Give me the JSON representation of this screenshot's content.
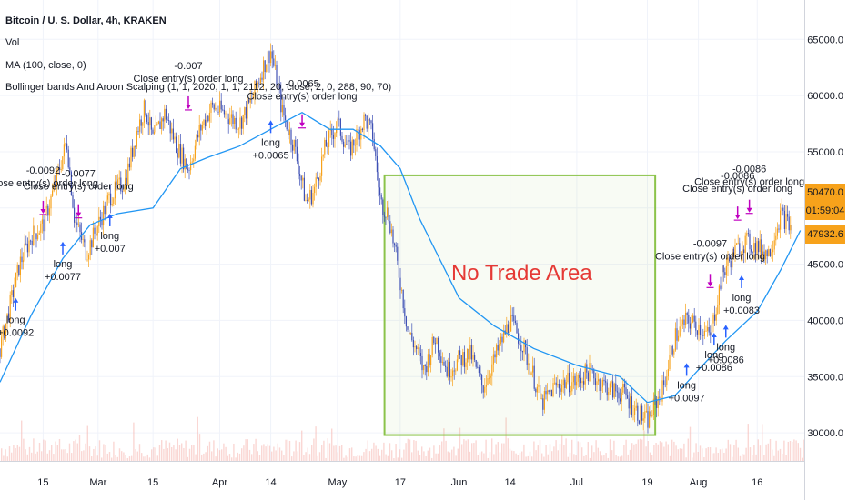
{
  "header": {
    "title": "Bitcoin / U. S. Dollar, 4h, KRAKEN",
    "vol": "Vol",
    "ma": "MA (100, close, 0)",
    "strategy": "Bollinger bands And Aroon Scalping (1, 1, 2020, 1, 1, 2112, 20, close, 2, 0, 288, 90, 70)"
  },
  "price_labels": {
    "last_price": "50470.0",
    "countdown": "01:59:04",
    "ma_value": "47932.6"
  },
  "annotation": {
    "text": "No Trade Area",
    "box_color": "#8bc34a",
    "text_color": "#e53935"
  },
  "colors": {
    "candle": "#f7a21b",
    "candle_alt": "#3f51b5",
    "ma_line": "#2196f3",
    "long_arrow": "#2962ff",
    "close_arrow": "#c000c0",
    "volume": "#f5b7b1",
    "last_price_bg": "#f7a21b",
    "ma_label_bg": "#f7a21b"
  },
  "chart_data": {
    "type": "line",
    "ylim": [
      27500,
      68500
    ],
    "yticks": [
      30000,
      35000,
      40000,
      45000,
      50000,
      55000,
      60000,
      65000
    ],
    "ytick_labels": [
      "30000.0",
      "35000.0",
      "40000.0",
      "45000.0",
      "50000.0",
      "55000.0",
      "60000.0",
      "65000.0"
    ],
    "xtick_labels": [
      "15",
      "Mar",
      "15",
      "Apr",
      "14",
      "May",
      "17",
      "Jun",
      "14",
      "Jul",
      "19",
      "Aug",
      "16"
    ],
    "xtick_dates": [
      "2021-02-15",
      "2021-03-01",
      "2021-03-15",
      "2021-04-01",
      "2021-04-14",
      "2021-05-01",
      "2021-05-17",
      "2021-06-01",
      "2021-06-14",
      "2021-07-01",
      "2021-07-19",
      "2021-08-01",
      "2021-08-16"
    ],
    "price": {
      "name": "Bitcoin / U. S. Dollar",
      "x": [
        "2021-02-04",
        "2021-02-06",
        "2021-02-09",
        "2021-02-12",
        "2021-02-15",
        "2021-02-18",
        "2021-02-21",
        "2021-02-23",
        "2021-02-26",
        "2021-03-01",
        "2021-03-04",
        "2021-03-08",
        "2021-03-11",
        "2021-03-13",
        "2021-03-15",
        "2021-03-18",
        "2021-03-21",
        "2021-03-24",
        "2021-03-27",
        "2021-03-30",
        "2021-04-02",
        "2021-04-06",
        "2021-04-09",
        "2021-04-12",
        "2021-04-14",
        "2021-04-17",
        "2021-04-20",
        "2021-04-23",
        "2021-04-25",
        "2021-04-28",
        "2021-05-01",
        "2021-05-04",
        "2021-05-08",
        "2021-05-10",
        "2021-05-12",
        "2021-05-14",
        "2021-05-17",
        "2021-05-19",
        "2021-05-21",
        "2021-05-23",
        "2021-05-26",
        "2021-05-29",
        "2021-06-01",
        "2021-06-04",
        "2021-06-07",
        "2021-06-10",
        "2021-06-14",
        "2021-06-17",
        "2021-06-20",
        "2021-06-22",
        "2021-06-25",
        "2021-06-28",
        "2021-07-01",
        "2021-07-04",
        "2021-07-07",
        "2021-07-10",
        "2021-07-13",
        "2021-07-16",
        "2021-07-19",
        "2021-07-21",
        "2021-07-23",
        "2021-07-26",
        "2021-07-29",
        "2021-08-01",
        "2021-08-04",
        "2021-08-07",
        "2021-08-10",
        "2021-08-13",
        "2021-08-16",
        "2021-08-19",
        "2021-08-22",
        "2021-08-25"
      ],
      "y": [
        37500,
        40500,
        45000,
        47500,
        48500,
        52000,
        56000,
        49000,
        46000,
        48500,
        51000,
        52500,
        57000,
        59000,
        56000,
        58500,
        55500,
        53500,
        57000,
        59000,
        58500,
        57500,
        59500,
        62500,
        64000,
        58500,
        55500,
        50500,
        51500,
        55500,
        57500,
        55000,
        58000,
        56500,
        50500,
        49500,
        43500,
        39000,
        37500,
        35500,
        38500,
        35500,
        36500,
        37000,
        34000,
        36500,
        40000,
        38000,
        35000,
        32500,
        34000,
        34500,
        34500,
        35500,
        34500,
        33800,
        33500,
        32000,
        31000,
        32500,
        34000,
        38500,
        40000,
        39500,
        38500,
        44000,
        46000,
        47000,
        46500,
        46000,
        49500,
        48000
      ]
    },
    "moving_average": {
      "name": "MA (100, close, 0)",
      "x": [
        "2021-02-04",
        "2021-02-12",
        "2021-02-20",
        "2021-02-27",
        "2021-03-06",
        "2021-03-15",
        "2021-03-22",
        "2021-03-29",
        "2021-04-06",
        "2021-04-14",
        "2021-04-22",
        "2021-04-29",
        "2021-05-05",
        "2021-05-12",
        "2021-05-17",
        "2021-05-22",
        "2021-06-01",
        "2021-06-10",
        "2021-06-20",
        "2021-07-01",
        "2021-07-12",
        "2021-07-19",
        "2021-07-26",
        "2021-08-01",
        "2021-08-08",
        "2021-08-16",
        "2021-08-22",
        "2021-08-27"
      ],
      "y": [
        34500,
        40500,
        45500,
        48500,
        49500,
        50000,
        53500,
        54500,
        55500,
        57000,
        58500,
        57000,
        57000,
        55500,
        53500,
        49000,
        42000,
        39500,
        37500,
        36000,
        35000,
        32700,
        33300,
        35600,
        38200,
        40800,
        44500,
        48000
      ]
    },
    "no_trade_area": {
      "x0": "2021-05-13",
      "x1": "2021-07-21",
      "y0": 29800,
      "y1": 52900
    },
    "trades": [
      {
        "kind": "long",
        "x": "2021-02-08",
        "y": 42000,
        "label": "long\n+0.0092"
      },
      {
        "kind": "close",
        "x": "2021-02-15",
        "y": 49500,
        "label": "-0.0092\nClose entry(s) order long"
      },
      {
        "kind": "long",
        "x": "2021-02-20",
        "y": 47000,
        "label": "long\n+0.0077"
      },
      {
        "kind": "close",
        "x": "2021-02-24",
        "y": 49200,
        "label": "-0.0077\nClose entry(s) order long"
      },
      {
        "kind": "long",
        "x": "2021-03-04",
        "y": 49500,
        "label": "long\n+0.007"
      },
      {
        "kind": "close",
        "x": "2021-03-24",
        "y": 58800,
        "label": "-0.007\nClose entry(s) order long"
      },
      {
        "kind": "long",
        "x": "2021-04-14",
        "y": 57800,
        "label": "long\n+0.0065"
      },
      {
        "kind": "close",
        "x": "2021-04-22",
        "y": 57200,
        "label": "-0.0065\nClose entry(s) order long"
      },
      {
        "kind": "long",
        "x": "2021-07-29",
        "y": 36200,
        "label": "long\n+0.0097"
      },
      {
        "kind": "close",
        "x": "2021-08-04",
        "y": 43000,
        "label": "-0.0097\nClose entry(s) order long"
      },
      {
        "kind": "long",
        "x": "2021-08-05",
        "y": 38900,
        "label": "long\n+0.0086"
      },
      {
        "kind": "close",
        "x": "2021-08-11",
        "y": 49000,
        "label": "-0.0086\nClose entry(s) order long"
      },
      {
        "kind": "long",
        "x": "2021-08-08",
        "y": 39600,
        "label": "long\n+0.0086"
      },
      {
        "kind": "close",
        "x": "2021-08-14",
        "y": 49600,
        "label": "-0.0086\nClose entry(s) order long"
      },
      {
        "kind": "long",
        "x": "2021-08-12",
        "y": 44000,
        "label": "long\n+0.0083"
      }
    ]
  }
}
